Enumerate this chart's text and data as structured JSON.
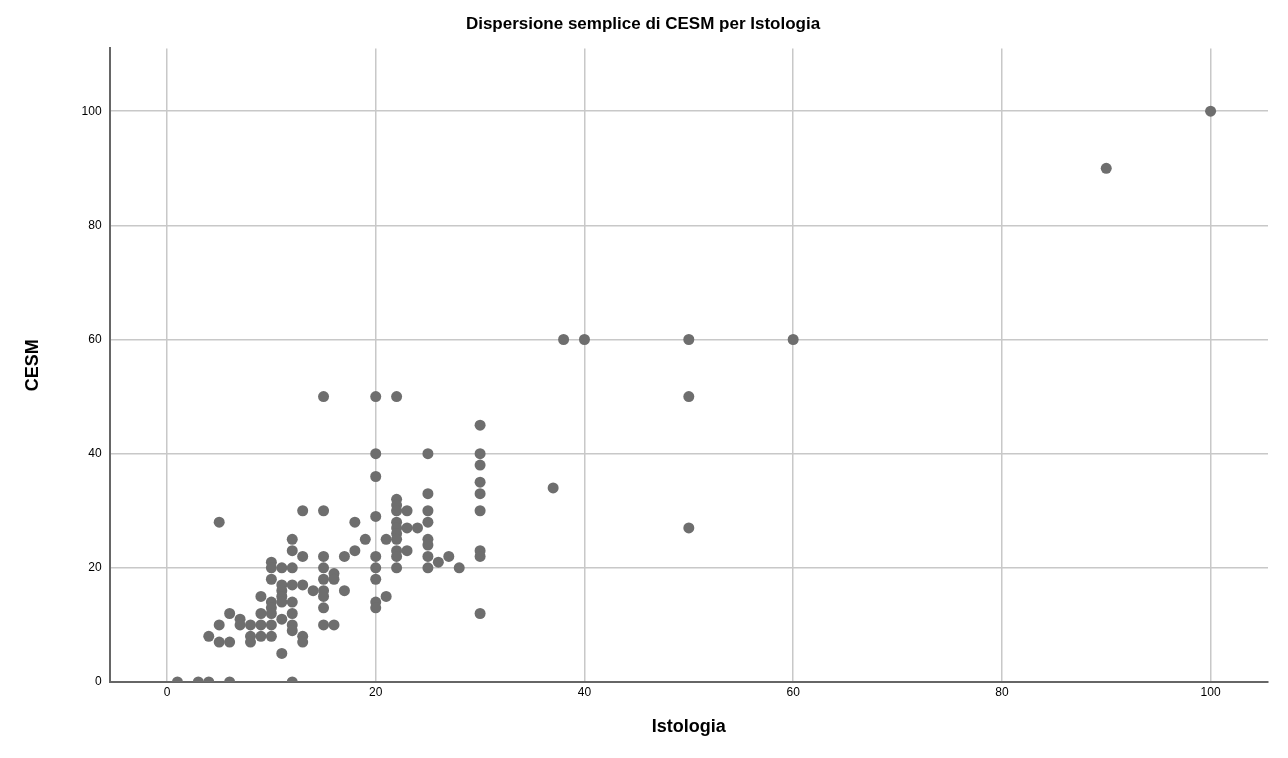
{
  "chart_data": {
    "type": "scatter",
    "title": "Dispersione semplice di CESM per Istologia",
    "xlabel": "Istologia",
    "ylabel": "CESM",
    "xlim": [
      -5.5,
      105.5
    ],
    "xticks": [
      0,
      20,
      40,
      60,
      80,
      100
    ],
    "ylim": [
      0,
      111
    ],
    "yticks": [
      0,
      20,
      40,
      60,
      80,
      100
    ],
    "grid": true,
    "marker": "circle",
    "series": [
      {
        "color": "#6e6e6e",
        "x": [
          1,
          3,
          4,
          6,
          12,
          5,
          4,
          5,
          5,
          6,
          6,
          7,
          7,
          8,
          8,
          8,
          9,
          9,
          9,
          9,
          10,
          10,
          10,
          10,
          10,
          10,
          10,
          10,
          11,
          11,
          11,
          11,
          11,
          11,
          11,
          12,
          12,
          12,
          12,
          12,
          12,
          12,
          12,
          13,
          13,
          13,
          13,
          13,
          14,
          15,
          15,
          15,
          15,
          15,
          15,
          15,
          15,
          15,
          16,
          16,
          16,
          17,
          17,
          18,
          18,
          19,
          20,
          20,
          20,
          20,
          20,
          20,
          20,
          20,
          20,
          21,
          21,
          22,
          22,
          22,
          22,
          22,
          22,
          22,
          22,
          22,
          22,
          22,
          23,
          23,
          23,
          24,
          25,
          25,
          25,
          25,
          25,
          25,
          25,
          25,
          26,
          27,
          28,
          30,
          30,
          30,
          30,
          30,
          30,
          30,
          30,
          30,
          37,
          38,
          40,
          50,
          50,
          50,
          60,
          90,
          100
        ],
        "values": [
          0,
          0,
          0,
          0,
          0,
          28,
          8,
          7,
          10,
          7,
          12,
          11,
          10,
          10,
          8,
          7,
          15,
          12,
          10,
          8,
          21,
          20,
          18,
          14,
          13,
          12,
          10,
          8,
          20,
          17,
          16,
          15,
          14,
          11,
          5,
          25,
          23,
          20,
          17,
          14,
          12,
          10,
          9,
          30,
          22,
          17,
          8,
          7,
          16,
          50,
          30,
          22,
          20,
          18,
          16,
          15,
          13,
          10,
          19,
          18,
          10,
          22,
          16,
          28,
          23,
          25,
          50,
          40,
          36,
          29,
          22,
          20,
          18,
          14,
          13,
          25,
          15,
          50,
          32,
          31,
          30,
          28,
          27,
          26,
          25,
          23,
          22,
          20,
          30,
          27,
          23,
          27,
          40,
          33,
          30,
          28,
          25,
          24,
          22,
          20,
          21,
          22,
          20,
          45,
          40,
          38,
          35,
          33,
          30,
          23,
          22,
          12,
          34,
          60,
          60,
          60,
          50,
          27,
          60,
          90,
          100
        ]
      }
    ]
  }
}
